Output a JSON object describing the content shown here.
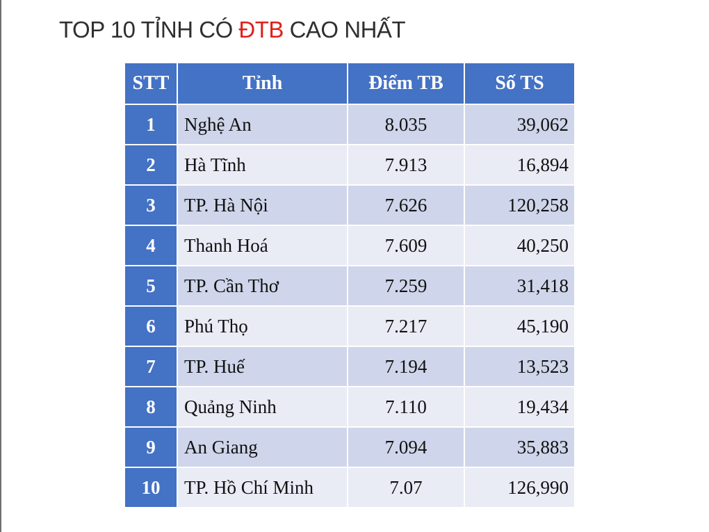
{
  "title": {
    "part1": "TOP 10 TỈNH CÓ ",
    "highlight": "ĐTB",
    "part2": " CAO NHẤT",
    "highlight_color": "#e0201b"
  },
  "table": {
    "header_color": "#4472c4",
    "headers": [
      "STT",
      "Tỉnh",
      "Điểm TB",
      "Số TS"
    ],
    "rows": [
      {
        "stt": "1",
        "tinh": "Nghệ An",
        "diem_tb": "8.035",
        "so_ts": "39,062"
      },
      {
        "stt": "2",
        "tinh": "Hà Tĩnh",
        "diem_tb": "7.913",
        "so_ts": "16,894"
      },
      {
        "stt": "3",
        "tinh": "TP. Hà Nội",
        "diem_tb": "7.626",
        "so_ts": "120,258"
      },
      {
        "stt": "4",
        "tinh": "Thanh Hoá",
        "diem_tb": "7.609",
        "so_ts": "40,250"
      },
      {
        "stt": "5",
        "tinh": "TP. Cần Thơ",
        "diem_tb": "7.259",
        "so_ts": "31,418"
      },
      {
        "stt": "6",
        "tinh": "Phú Thọ",
        "diem_tb": "7.217",
        "so_ts": "45,190"
      },
      {
        "stt": "7",
        "tinh": "TP. Huế",
        "diem_tb": "7.194",
        "so_ts": "13,523"
      },
      {
        "stt": "8",
        "tinh": "Quảng Ninh",
        "diem_tb": "7.110",
        "so_ts": "19,434"
      },
      {
        "stt": "9",
        "tinh": "An Giang",
        "diem_tb": "7.094",
        "so_ts": "35,883"
      },
      {
        "stt": "10",
        "tinh": "TP. Hồ Chí Minh",
        "diem_tb": "7.07",
        "so_ts": "126,990"
      }
    ]
  }
}
